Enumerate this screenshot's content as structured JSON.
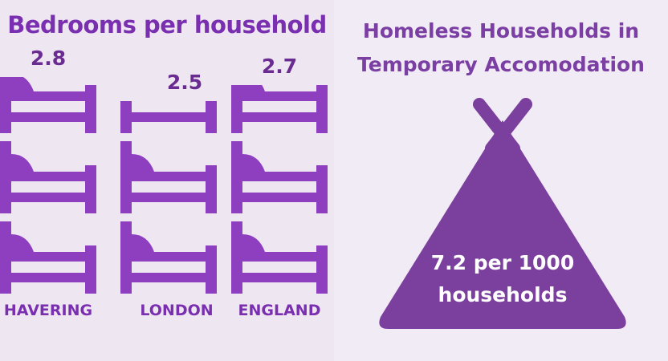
{
  "chart_data": [
    {
      "type": "pictograph",
      "title": "Bedrooms per household",
      "categories": [
        "HAVERING",
        "LONDON",
        "ENGLAND"
      ],
      "values": [
        2.8,
        2.5,
        2.7
      ],
      "color": "#8e3fc0"
    },
    {
      "type": "tent",
      "title": "Homeless Households in Temporary Accomodation",
      "values": [
        7.2
      ],
      "value_labels": [
        "7.2 per 1000 households"
      ],
      "color": "#7b3f9e"
    }
  ]
}
